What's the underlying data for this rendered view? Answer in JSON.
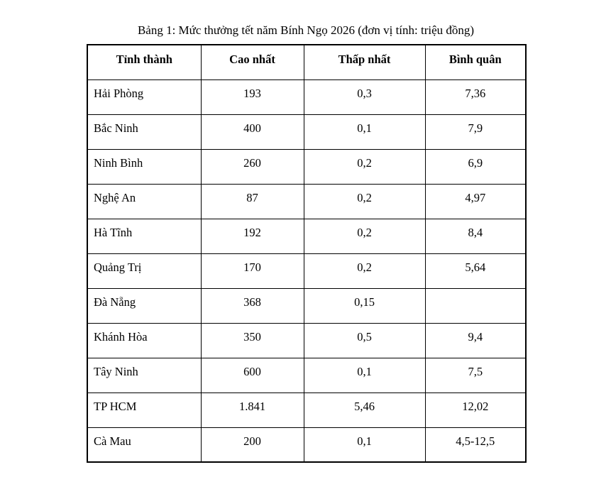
{
  "title": "Bảng 1: Mức thưởng tết năm Bính Ngọ 2026 (đơn vị tính: triệu đồng)",
  "chart_data": {
    "type": "table",
    "title": "Bảng 1: Mức thưởng tết năm Bính Ngọ 2026 (đơn vị tính: triệu đồng)",
    "unit": "triệu đồng",
    "headers": [
      "Tỉnh thành",
      "Cao nhất",
      "Thấp nhất",
      "Bình quân"
    ],
    "rows": [
      [
        "Hải Phòng",
        "193",
        "0,3",
        "7,36"
      ],
      [
        "Bắc Ninh",
        "400",
        "0,1",
        "7,9"
      ],
      [
        "Ninh Bình",
        "260",
        "0,2",
        "6,9"
      ],
      [
        "Nghệ An",
        "87",
        "0,2",
        "4,97"
      ],
      [
        "Hà Tĩnh",
        "192",
        "0,2",
        "8,4"
      ],
      [
        "Quảng Trị",
        "170",
        "0,2",
        "5,64"
      ],
      [
        "Đà Nẵng",
        "368",
        "0,15",
        ""
      ],
      [
        "Khánh Hòa",
        "350",
        "0,5",
        "9,4"
      ],
      [
        "Tây Ninh",
        "600",
        "0,1",
        "7,5"
      ],
      [
        "TP HCM",
        "1.841",
        "5,46",
        "12,02"
      ],
      [
        "Cà Mau",
        "200",
        "0,1",
        "4,5-12,5"
      ]
    ]
  }
}
